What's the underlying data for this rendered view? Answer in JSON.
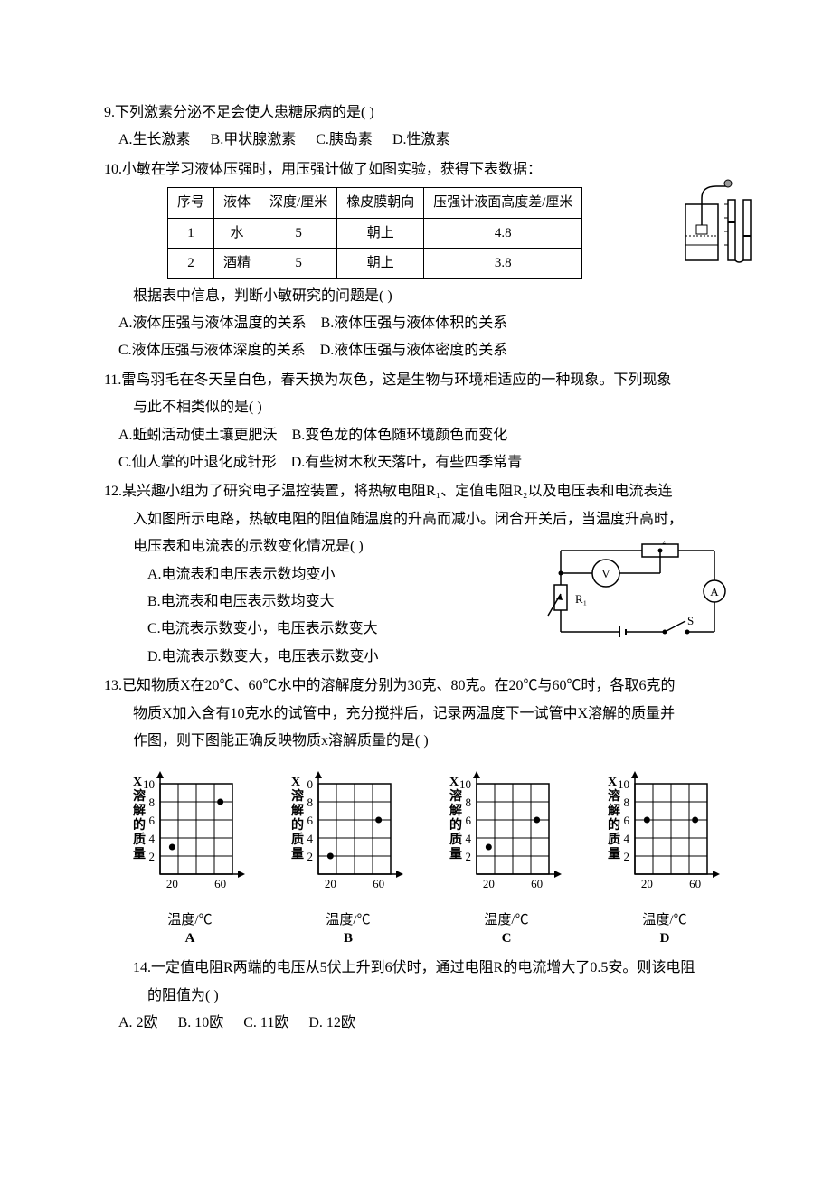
{
  "q9": {
    "text": "9.下列激素分泌不足会使人患糖尿病的是(   )",
    "opts": {
      "A": "A.生长激素",
      "B": "B.甲状腺激素",
      "C": "C.胰岛素",
      "D": "D.性激素"
    }
  },
  "q10": {
    "text": "10.小敏在学习液体压强时，用压强计做了如图实验，获得下表数据：",
    "table": {
      "headers": [
        "序号",
        "液体",
        "深度/厘米",
        "橡皮膜朝向",
        "压强计液面高度差/厘米"
      ],
      "rows": [
        [
          "1",
          "水",
          "5",
          "朝上",
          "4.8"
        ],
        [
          "2",
          "酒精",
          "5",
          "朝上",
          "3.8"
        ]
      ]
    },
    "after": "根据表中信息，判断小敏研究的问题是(   )",
    "opts": {
      "A": "A.液体压强与液体温度的关系",
      "B": "B.液体压强与液体体积的关系",
      "C": "C.液体压强与液体深度的关系",
      "D": "D.液体压强与液体密度的关系"
    }
  },
  "q11": {
    "text1": "11.雷鸟羽毛在冬天呈白色，春天换为灰色，这是生物与环境相适应的一种现象。下列现象",
    "text2": "与此不相类似的是(   )",
    "opts": {
      "A": "A.蚯蚓活动使土壤更肥沃",
      "B": "B.变色龙的体色随环境颜色而变化",
      "C": "C.仙人掌的叶退化成针形",
      "D": "D.有些树木秋天落叶，有些四季常青"
    }
  },
  "q12": {
    "text1": "12.某兴趣小组为了研究电子温控装置，将热敏电阻R₁、定值电阻R₂以及电压表和电流表连",
    "text2": "入如图所示电路，热敏电阻的阻值随温度的升高而减小。闭合开关后，当温度升高时，",
    "text3": "电压表和电流表的示数变化情况是(   )",
    "opts": {
      "A": "A.电流表和电压表示数均变小",
      "B": "B.电流表和电压表示数均变大",
      "C": "C.电流表示数变小，电压表示数变大",
      "D": "D.电流表示数变大，电压表示数变小"
    },
    "circuit": {
      "R1": "R₁",
      "R2": "R₂",
      "V": "V",
      "A": "A",
      "S": "S"
    }
  },
  "q13": {
    "text1": "13.已知物质X在20℃、60℃水中的溶解度分别为30克、80克。在20℃与60℃时，各取6克的",
    "text2": "物质X加入含有10克水的试管中，充分搅拌后，记录两温度下一试管中X溶解的质量并",
    "text3": "作图，则下图能正确反映物质x溶解质量的是(   )",
    "charts": {
      "yLabel": "X溶解的质量",
      "yTicks": [
        "2",
        "4",
        "6",
        "8",
        "10"
      ],
      "xTicks": [
        "20",
        "60"
      ],
      "xLabel": "温度/℃",
      "yMax": 10,
      "series": {
        "A": {
          "label": "A",
          "p1": [
            20,
            3
          ],
          "p2": [
            60,
            8
          ],
          "y10label": "10"
        },
        "B": {
          "label": "B",
          "p1": [
            20,
            2
          ],
          "p2": [
            60,
            6
          ],
          "y10label": "0"
        },
        "C": {
          "label": "C",
          "p1": [
            20,
            3
          ],
          "p2": [
            60,
            6
          ],
          "y10label": "10"
        },
        "D": {
          "label": "D",
          "p1": [
            20,
            6
          ],
          "p2": [
            60,
            6
          ],
          "y10label": "10"
        }
      }
    }
  },
  "q14": {
    "text1": "14.一定值电阻R两端的电压从5伏上升到6伏时，通过电阻R的电流增大了0.5安。则该电阻",
    "text2": "的阻值为(   )",
    "opts": {
      "A": "A. 2欧",
      "B": "B. 10欧",
      "C": "C. 11欧",
      "D": "D. 12欧"
    }
  },
  "style": {
    "text_color": "#000000",
    "grid_color": "#000000",
    "background": "#ffffff"
  }
}
